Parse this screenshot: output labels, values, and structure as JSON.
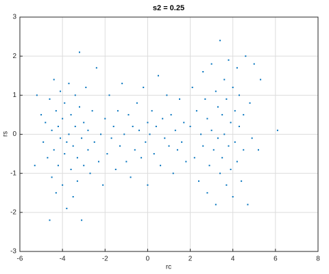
{
  "chart_data": {
    "type": "scatter",
    "title": "s2 = 0.25",
    "x_label": "rc",
    "y_label": "rs",
    "color": "#0072bd",
    "grid": true,
    "xlim": [
      -6,
      8
    ],
    "ylim": [
      -3,
      3
    ],
    "xticks": [
      -6,
      -4,
      -2,
      0,
      2,
      4,
      6,
      8
    ],
    "yticks": [
      -3,
      -2,
      -1,
      0,
      1,
      2,
      3
    ],
    "x": [
      -5.2,
      -5.0,
      -4.9,
      -4.8,
      -4.7,
      -4.6,
      -4.5,
      -4.5,
      -4.4,
      -4.4,
      -4.3,
      -4.3,
      -4.2,
      -4.2,
      -4.1,
      -4.1,
      -4.0,
      -4.0,
      -3.9,
      -3.9,
      -3.8,
      -3.8,
      -3.7,
      -3.7,
      -3.6,
      -3.6,
      -3.5,
      -3.5,
      -3.4,
      -3.4,
      -3.3,
      -3.3,
      -3.2,
      -3.2,
      -3.1,
      -3.1,
      -3.0,
      -3.0,
      -2.9,
      -2.8,
      -2.8,
      -2.7,
      -2.6,
      -2.5,
      -2.4,
      -2.3,
      -2.2,
      -2.1,
      -4.6,
      -5.3,
      -2.0,
      -1.9,
      -1.8,
      -1.7,
      -1.6,
      -1.5,
      -1.4,
      -1.3,
      -1.2,
      -1.1,
      -1.0,
      -0.9,
      -0.8,
      -0.7,
      -0.6,
      -0.5,
      -0.4,
      -0.3,
      -0.2,
      -0.1,
      0.0,
      0.0,
      0.1,
      0.2,
      0.3,
      0.4,
      0.5,
      0.6,
      0.7,
      0.8,
      0.9,
      1.0,
      1.1,
      1.2,
      1.3,
      1.4,
      1.5,
      1.6,
      1.7,
      1.8,
      2.0,
      2.1,
      2.2,
      2.3,
      2.4,
      2.5,
      2.6,
      2.6,
      2.7,
      2.8,
      2.8,
      2.9,
      3.0,
      3.0,
      3.1,
      3.2,
      3.2,
      3.3,
      3.3,
      3.4,
      3.4,
      3.5,
      3.5,
      3.6,
      3.6,
      3.7,
      3.7,
      3.8,
      3.8,
      3.9,
      3.9,
      4.0,
      4.0,
      4.1,
      4.1,
      4.2,
      4.2,
      4.3,
      4.3,
      4.4,
      4.5,
      4.5,
      4.6,
      4.7,
      4.8,
      4.9,
      5.0,
      5.2,
      5.3,
      6.1
    ],
    "y": [
      1.0,
      0.5,
      -0.2,
      0.3,
      -0.6,
      0.9,
      -1.1,
      0.1,
      1.4,
      -0.4,
      -1.5,
      0.6,
      -0.8,
      0.2,
      1.1,
      -0.1,
      -1.3,
      0.4,
      -0.5,
      0.8,
      -1.9,
      -0.2,
      1.3,
      0.0,
      -0.9,
      0.5,
      -1.6,
      -0.3,
      1.0,
      0.2,
      -1.2,
      -0.6,
      2.1,
      0.7,
      -0.1,
      -2.2,
      0.3,
      -0.8,
      1.2,
      -0.4,
      0.1,
      -1.0,
      0.6,
      -0.2,
      1.7,
      -0.7,
      0.0,
      -1.3,
      -2.2,
      -0.8,
      0.4,
      -0.5,
      1.0,
      -0.1,
      0.2,
      -0.9,
      0.6,
      -0.3,
      1.3,
      0.0,
      -0.7,
      0.5,
      -1.1,
      0.2,
      -0.4,
      0.8,
      0.1,
      -0.6,
      1.2,
      -0.2,
      0.3,
      -1.3,
      0.0,
      0.6,
      -0.5,
      0.2,
      1.5,
      -0.8,
      0.4,
      -0.1,
      1.0,
      -0.3,
      0.5,
      -1.0,
      0.1,
      -0.4,
      0.9,
      -0.2,
      0.3,
      -0.7,
      0.2,
      1.2,
      -0.6,
      0.6,
      -1.2,
      0.0,
      1.6,
      -0.3,
      0.9,
      -1.5,
      0.4,
      -0.8,
      1.8,
      0.1,
      -0.4,
      1.1,
      -1.8,
      0.7,
      -0.1,
      2.4,
      -1.0,
      0.5,
      -0.6,
      1.4,
      0.0,
      -1.3,
      0.9,
      -0.3,
      1.9,
      0.3,
      -0.9,
      1.2,
      -1.6,
      0.6,
      -0.2,
      1.7,
      -0.7,
      0.2,
      1.0,
      -1.2,
      0.5,
      -0.4,
      2.0,
      -1.8,
      0.8,
      -0.1,
      1.8,
      -0.4,
      1.4,
      0.1
    ]
  }
}
